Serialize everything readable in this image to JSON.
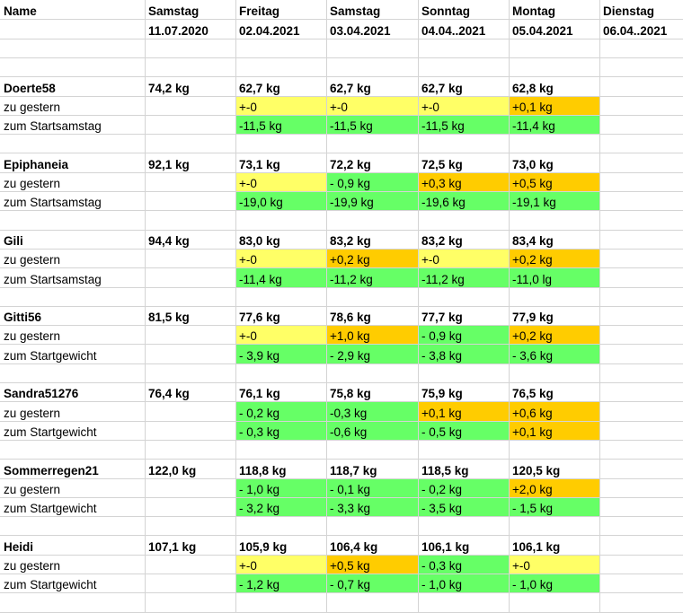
{
  "sheet": {
    "header": {
      "name": "Name",
      "days": [
        {
          "day": "Samstag",
          "date": "11.07.2020"
        },
        {
          "day": "Freitag",
          "date": "02.04.2021"
        },
        {
          "day": "Samstag",
          "date": "03.04.2021"
        },
        {
          "day": "Sonntag",
          "date": "04.04..2021"
        },
        {
          "day": "Montag",
          "date": "05.04.2021"
        },
        {
          "day": "Dienstag",
          "date": "06.04..2021"
        }
      ]
    },
    "labels": {
      "to_yesterday": "zu gestern",
      "to_start_saturday": "zum Startsamstag",
      "to_start_weight": "zum Startgewicht"
    },
    "people": [
      {
        "name": "Doerte58",
        "start": "74,2 kg",
        "weights": [
          "62,7 kg",
          "62,7 kg",
          "62,7 kg",
          "62,8 kg"
        ],
        "diff_label": "zum Startsamstag",
        "yesterday": [
          "+-0",
          "+-0",
          "+-0",
          "+0,1 kg"
        ],
        "yesterday_colors": [
          "yellow",
          "yellow",
          "yellow",
          "orange"
        ],
        "start_diff": [
          "-11,5 kg",
          "-11,5 kg",
          "-11,5 kg",
          "-11,4 kg"
        ]
      },
      {
        "name": "Epiphaneia",
        "start": "92,1 kg",
        "weights": [
          "73,1 kg",
          "72,2 kg",
          "72,5 kg",
          "73,0 kg"
        ],
        "diff_label": "zum Startsamstag",
        "yesterday": [
          "+-0",
          "- 0,9 kg",
          "+0,3 kg",
          "+0,5 kg"
        ],
        "yesterday_colors": [
          "yellow",
          "green",
          "orange",
          "orange"
        ],
        "start_diff": [
          "-19,0 kg",
          "-19,9 kg",
          "-19,6 kg",
          "-19,1 kg"
        ]
      },
      {
        "name": "Gili",
        "start": "94,4 kg",
        "weights": [
          "83,0 kg",
          "83,2 kg",
          "83,2 kg",
          "83,4 kg"
        ],
        "diff_label": "zum Startsamstag",
        "yesterday": [
          "+-0",
          "+0,2 kg",
          "+-0",
          "+0,2 kg"
        ],
        "yesterday_colors": [
          "yellow",
          "orange",
          "yellow",
          "orange"
        ],
        "start_diff": [
          "-11,4 kg",
          "-11,2 kg",
          "-11,2 kg",
          "-11,0 lg"
        ]
      },
      {
        "name": "Gitti56",
        "start": "81,5 kg",
        "weights": [
          "77,6 kg",
          "78,6 kg",
          "77,7 kg",
          "77,9 kg"
        ],
        "diff_label": "zum Startgewicht",
        "yesterday": [
          "+-0",
          "+1,0 kg",
          "- 0,9 kg",
          "+0,2 kg"
        ],
        "yesterday_colors": [
          "yellow",
          "orange",
          "green",
          "orange"
        ],
        "start_diff": [
          "- 3,9 kg",
          "- 2,9 kg",
          "- 3,8 kg",
          "- 3,6 kg"
        ]
      },
      {
        "name": "Sandra51276",
        "start": "76,4 kg",
        "weights": [
          "76,1 kg",
          "75,8 kg",
          "75,9 kg",
          "76,5 kg"
        ],
        "diff_label": "zum Startgewicht",
        "yesterday": [
          "- 0,2 kg",
          "-0,3 kg",
          "+0,1 kg",
          "+0,6 kg"
        ],
        "yesterday_colors": [
          "green",
          "green",
          "orange",
          "orange"
        ],
        "start_diff": [
          "- 0,3 kg",
          "-0,6 kg",
          "- 0,5 kg",
          "+0,1 kg"
        ],
        "start_diff_colors": [
          "green",
          "green",
          "green",
          "orange"
        ]
      },
      {
        "name": "Sommerregen21",
        "start": "122,0 kg",
        "weights": [
          "118,8 kg",
          "118,7 kg",
          "118,5 kg",
          "120,5 kg"
        ],
        "diff_label": "zum Startgewicht",
        "yesterday": [
          "- 1,0 kg",
          "- 0,1 kg",
          "- 0,2 kg",
          "+2,0 kg"
        ],
        "yesterday_colors": [
          "green",
          "green",
          "green",
          "orange"
        ],
        "start_diff": [
          "- 3,2 kg",
          "- 3,3 kg",
          "- 3,5 kg",
          "- 1,5 kg"
        ]
      },
      {
        "name": "Heidi",
        "start": "107,1 kg",
        "weights": [
          "105,9 kg",
          "106,4 kg",
          "106,1 kg",
          "106,1 kg"
        ],
        "diff_label": "zum Startgewicht",
        "yesterday": [
          "+-0",
          "+0,5 kg",
          "- 0,3 kg",
          "+-0"
        ],
        "yesterday_colors": [
          "yellow",
          "orange",
          "green",
          "yellow"
        ],
        "start_diff": [
          "- 1,2 kg",
          "- 0,7 kg",
          "- 1,0 kg",
          "- 1,0 kg"
        ]
      }
    ],
    "colors": {
      "yellow": "#ffff66",
      "orange": "#ffcc00",
      "green": "#66ff66",
      "grid": "#d4d4d4"
    }
  }
}
